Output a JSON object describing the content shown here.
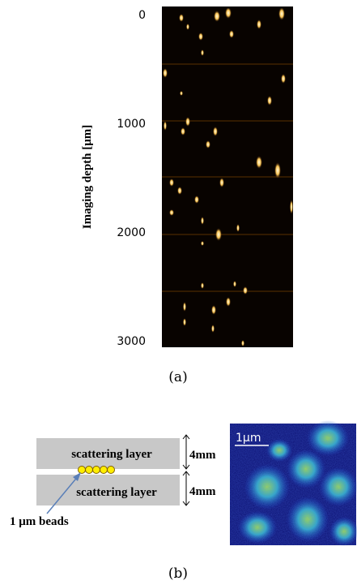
{
  "panel_a": {
    "axis_label": "Imaging depth [μm]",
    "depth_ticks": [
      0,
      1000,
      2000,
      3000
    ],
    "caption": "(a)"
  },
  "panel_b": {
    "layer_top": "scattering layer",
    "layer_bottom": "scattering layer",
    "thickness_top": "4mm",
    "thickness_bottom": "4mm",
    "beads_label": "1 μm beads",
    "scale_bar": "1μm",
    "caption": "(b)"
  }
}
